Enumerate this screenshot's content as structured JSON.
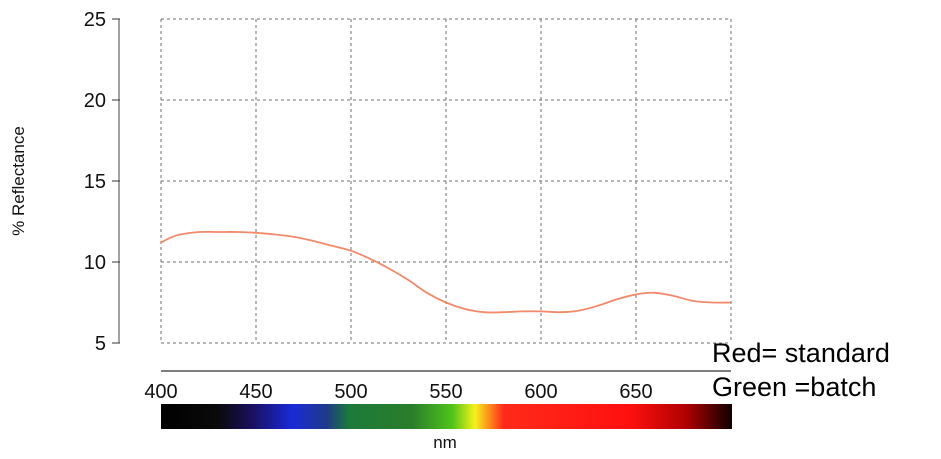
{
  "chart_data": {
    "type": "line",
    "title": "",
    "xlabel": "nm",
    "ylabel": "% Reflectance",
    "x_ticks": [
      "400",
      "450",
      "500",
      "550",
      "600",
      "650"
    ],
    "y_ticks": [
      "5",
      "10",
      "15",
      "20",
      "25"
    ],
    "xlim": [
      400,
      700
    ],
    "ylim": [
      5,
      25
    ],
    "grid": true,
    "grid_style": "dashed",
    "spectrum_bar": true,
    "series": [
      {
        "name": "Red= standard",
        "color": "#f08a6a",
        "x": [
          400,
          405,
          410,
          420,
          430,
          440,
          450,
          460,
          470,
          480,
          490,
          500,
          510,
          520,
          530,
          540,
          550,
          560,
          570,
          580,
          590,
          600,
          610,
          620,
          630,
          640,
          650,
          660,
          670,
          680,
          690,
          700
        ],
        "y": [
          11.2,
          11.5,
          11.7,
          11.85,
          11.85,
          11.85,
          11.8,
          11.7,
          11.55,
          11.3,
          11.0,
          10.7,
          10.2,
          9.6,
          8.9,
          8.1,
          7.5,
          7.1,
          6.9,
          6.9,
          6.95,
          6.95,
          6.9,
          7.0,
          7.3,
          7.7,
          8.0,
          8.1,
          7.9,
          7.6,
          7.5,
          7.5
        ]
      }
    ]
  },
  "legend": {
    "standard_label": "Red= standard",
    "batch_label": "Green =batch"
  }
}
